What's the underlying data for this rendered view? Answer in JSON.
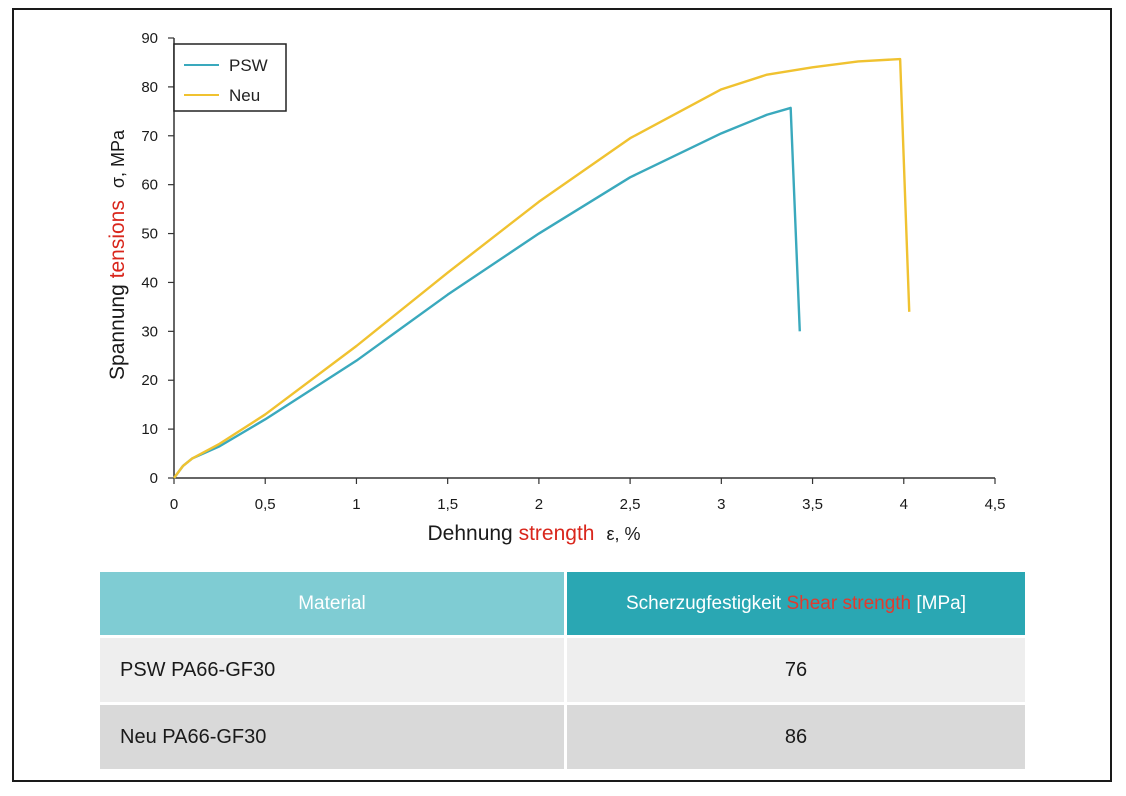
{
  "chart_data": {
    "type": "line",
    "xlabel_parts": [
      "Dehnung",
      "strength",
      "ε,  %"
    ],
    "ylabel_parts": [
      "Spannung",
      "tensions",
      "σ,  MPa"
    ],
    "xlim": [
      0,
      4.5
    ],
    "ylim": [
      0,
      90
    ],
    "x_ticks": [
      0,
      0.5,
      1,
      1.5,
      2,
      2.5,
      3,
      3.5,
      4,
      4.5
    ],
    "x_tick_labels": [
      "0",
      "0,5",
      "1",
      "1,5",
      "2",
      "2,5",
      "3",
      "3,5",
      "4",
      "4,5"
    ],
    "y_ticks": [
      0,
      10,
      20,
      30,
      40,
      50,
      60,
      70,
      80,
      90
    ],
    "y_tick_labels": [
      "0",
      "10",
      "20",
      "30",
      "40",
      "50",
      "60",
      "70",
      "80",
      "90"
    ],
    "grid": false,
    "legend_position": "top-left",
    "series": [
      {
        "name": "PSW",
        "color": "#3aa9bd",
        "x": [
          0,
          0.05,
          0.1,
          0.25,
          0.5,
          1.0,
          1.5,
          2.0,
          2.5,
          3.0,
          3.25,
          3.38,
          3.43
        ],
        "y": [
          0,
          2.5,
          4,
          6.5,
          12,
          24,
          37.5,
          50,
          61.5,
          70.5,
          74.3,
          75.7,
          30
        ]
      },
      {
        "name": "Neu",
        "color": "#f0c230",
        "x": [
          0,
          0.05,
          0.1,
          0.25,
          0.5,
          1.0,
          1.5,
          2.0,
          2.5,
          3.0,
          3.25,
          3.5,
          3.75,
          3.98,
          4.03
        ],
        "y": [
          0,
          2.5,
          4,
          7,
          13,
          27,
          42,
          56.5,
          69.5,
          79.5,
          82.5,
          84,
          85.2,
          85.7,
          34
        ]
      }
    ]
  },
  "table": {
    "header_material": "Material",
    "header_strength_de": "Scherzugfestigkeit",
    "header_strength_en": "Shear strength",
    "header_unit": "[MPa]",
    "rows": [
      {
        "material": "PSW PA66-GF30",
        "value": "76"
      },
      {
        "material": "Neu PA66-GF30",
        "value": "86"
      }
    ]
  }
}
